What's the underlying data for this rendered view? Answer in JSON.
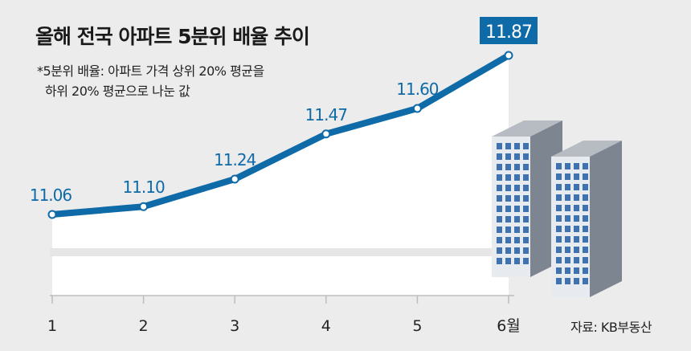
{
  "title": "올해 전국 아파트 5분위 배율 추이",
  "note": {
    "line1": "*5분위 배율: 아파트 가격 상위 20% 평균을",
    "line2": "하위 20% 평균으로 나눈 값"
  },
  "source": "자료: KB부동산",
  "colors": {
    "line": "#0f6aa8",
    "label": "#0f6aa8",
    "highlight_bg": "#0f6aa8",
    "plot_bg": "#ffffff",
    "page_bg": "#ececec"
  },
  "chart_data": {
    "type": "line",
    "categories": [
      "1",
      "2",
      "3",
      "4",
      "5",
      "6월"
    ],
    "values": [
      11.06,
      11.1,
      11.24,
      11.47,
      11.6,
      11.87
    ],
    "labels": [
      "11.06",
      "11.10",
      "11.24",
      "11.47",
      "11.60",
      "11.87"
    ],
    "highlight_index": 5,
    "title": "올해 전국 아파트 5분위 배율 추이",
    "xlabel": "",
    "ylabel": "",
    "grid": false,
    "legend": "none"
  }
}
